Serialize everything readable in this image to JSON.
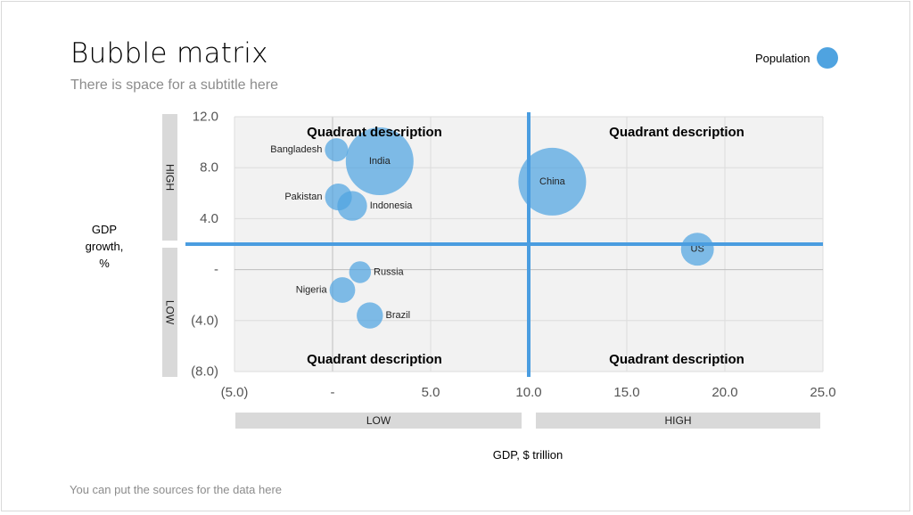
{
  "slide": {
    "title": "Bubble matrix",
    "subtitle": "There is space for a subtitle here",
    "source_note": "You can put the sources for the data here"
  },
  "chart_data": {
    "type": "scatter",
    "subtype": "bubble",
    "xlabel": "GDP, $ trillion",
    "ylabel_lines": [
      "GDP",
      "growth,",
      "%"
    ],
    "xlim": [
      -5,
      25
    ],
    "ylim": [
      -8,
      12
    ],
    "x_ticks": [
      -5,
      0,
      5,
      10,
      15,
      20,
      25
    ],
    "x_tick_labels": [
      "(5.0)",
      "-",
      "5.0",
      "10.0",
      "15.0",
      "20.0",
      "25.0"
    ],
    "y_ticks": [
      12,
      8,
      4,
      0,
      -4,
      -8
    ],
    "y_tick_labels": [
      "12.0",
      "8.0",
      "4.0",
      "-",
      "(4.0)",
      "(8.0)"
    ],
    "grid": true,
    "legend": {
      "label": "Population",
      "position": "top-right",
      "color": "#4fa3e0"
    },
    "series": [
      {
        "name": "Population",
        "color": "#4fa3e0",
        "points": [
          {
            "label": "Bangladesh",
            "x": 0.2,
            "y": 9.4,
            "size": 165
          },
          {
            "label": "India",
            "x": 2.4,
            "y": 8.5,
            "size": 1400
          },
          {
            "label": "Pakistan",
            "x": 0.3,
            "y": 5.7,
            "size": 220
          },
          {
            "label": "Indonesia",
            "x": 1.0,
            "y": 5.0,
            "size": 270
          },
          {
            "label": "China",
            "x": 11.2,
            "y": 6.9,
            "size": 1400
          },
          {
            "label": "US",
            "x": 18.6,
            "y": 1.6,
            "size": 330
          },
          {
            "label": "Russia",
            "x": 1.4,
            "y": -0.2,
            "size": 145
          },
          {
            "label": "Nigeria",
            "x": 0.5,
            "y": -1.6,
            "size": 200
          },
          {
            "label": "Brazil",
            "x": 1.9,
            "y": -3.6,
            "size": 210
          }
        ]
      }
    ],
    "divider_lines": {
      "x": 10,
      "y": 2,
      "color": "#4a9de0"
    },
    "quadrant_labels": {
      "top_left": "Quadrant description",
      "top_right": "Quadrant description",
      "bottom_left": "Quadrant description",
      "bottom_right": "Quadrant description"
    },
    "x_bands": {
      "low": "LOW",
      "high": "HIGH"
    },
    "y_bands": {
      "high": "HIGH",
      "low": "LOW"
    }
  }
}
